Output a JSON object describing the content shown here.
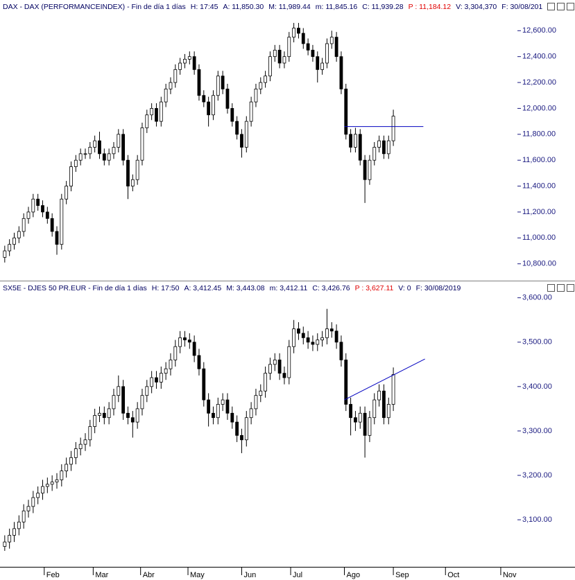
{
  "chart_data": [
    {
      "type": "candlestick",
      "header": [
        "DAX - DAX (PERFORMANCEINDEX) - Fin de día 1 días",
        "H: 17:45",
        "A: 11,850.30",
        "M: 11,989.44",
        "m: 11,845.16",
        "C: 11,939.28",
        "P : 11,184.12",
        "V: 3,304,370",
        "F: 30/08/201"
      ],
      "header_colors": [
        "#000060",
        "#000060",
        "#000060",
        "#000060",
        "#000060",
        "#000060",
        "#e00000",
        "#000060",
        "#000060"
      ],
      "up_color": "#ffffff",
      "down_color": "#000000",
      "outline_color": "#000000",
      "tick_color": "#1a1a80",
      "xlim": [
        0,
        364
      ],
      "ylim": [
        10670,
        12730
      ],
      "yticks": [
        {
          "value": 10800,
          "label": "10,800.00"
        },
        {
          "value": 11000,
          "label": "11,000.00"
        },
        {
          "value": 11200,
          "label": "11,200.00"
        },
        {
          "value": 11400,
          "label": "11,400.00"
        },
        {
          "value": 11600,
          "label": "11,600.00"
        },
        {
          "value": 11800,
          "label": "11,800.00"
        },
        {
          "value": 12000,
          "label": "12,000.00"
        },
        {
          "value": 12200,
          "label": "12,200.00"
        },
        {
          "value": 12400,
          "label": "12,400.00"
        },
        {
          "value": 12600,
          "label": "12,600.00"
        }
      ],
      "x": [
        3,
        6,
        9,
        12,
        15,
        18,
        21,
        24,
        27,
        30,
        33,
        36,
        39,
        42,
        45,
        48,
        51,
        54,
        57,
        60,
        63,
        66,
        69,
        72,
        75,
        78,
        81,
        84,
        87,
        90,
        93,
        96,
        99,
        102,
        105,
        108,
        111,
        114,
        117,
        120,
        123,
        126,
        129,
        132,
        135,
        138,
        141,
        144,
        147,
        150,
        153,
        156,
        159,
        162,
        165,
        168,
        171,
        174,
        177,
        180,
        183,
        186,
        189,
        192,
        195,
        198,
        201,
        204,
        207,
        210,
        213,
        216,
        219,
        222,
        225,
        228,
        231,
        234,
        237,
        240,
        243,
        246,
        249
      ],
      "open": [
        10850,
        10900,
        10950,
        11000,
        11050,
        11150,
        11200,
        11300,
        11250,
        11200,
        11150,
        11050,
        10950,
        11300,
        11400,
        11550,
        11600,
        11650,
        11650,
        11700,
        11750,
        11650,
        11600,
        11650,
        11700,
        11800,
        11600,
        11400,
        11450,
        11600,
        11850,
        11950,
        12000,
        11900,
        12050,
        12150,
        12200,
        12300,
        12350,
        12380,
        12400,
        12300,
        12100,
        12050,
        11950,
        12100,
        12250,
        12150,
        12000,
        11900,
        11800,
        11700,
        11900,
        12050,
        12150,
        12200,
        12250,
        12400,
        12450,
        12350,
        12400,
        12550,
        12620,
        12580,
        12500,
        12450,
        12400,
        12300,
        12350,
        12500,
        12550,
        12400,
        12150,
        11800,
        11700,
        11800,
        11600,
        11450,
        11600,
        11700,
        11750,
        11650,
        11750
      ],
      "high": [
        10940,
        10990,
        11040,
        11090,
        11190,
        11240,
        11340,
        11340,
        11290,
        11240,
        11190,
        11090,
        11340,
        11440,
        11590,
        11640,
        11690,
        11690,
        11740,
        11790,
        11820,
        11690,
        11690,
        11740,
        11840,
        11840,
        11640,
        11490,
        11640,
        11890,
        11990,
        12040,
        12040,
        12090,
        12190,
        12240,
        12340,
        12390,
        12420,
        12440,
        12440,
        12340,
        12140,
        12090,
        12140,
        12290,
        12290,
        12190,
        12040,
        11940,
        11840,
        11940,
        12090,
        12190,
        12240,
        12290,
        12440,
        12490,
        12490,
        12440,
        12590,
        12660,
        12660,
        12620,
        12540,
        12490,
        12440,
        12390,
        12540,
        12600,
        12590,
        12440,
        12190,
        11840,
        11850,
        11840,
        11640,
        11640,
        11740,
        11790,
        11790,
        11790,
        11990
      ],
      "low": [
        10810,
        10860,
        10910,
        10960,
        11010,
        11110,
        11160,
        11210,
        11160,
        11110,
        11010,
        10870,
        10910,
        11260,
        11360,
        11510,
        11560,
        11610,
        11610,
        11660,
        11610,
        11560,
        11560,
        11610,
        11660,
        11560,
        11300,
        11360,
        11410,
        11560,
        11810,
        11910,
        11860,
        11860,
        12010,
        12110,
        12160,
        12260,
        12310,
        12340,
        12260,
        12060,
        12010,
        11860,
        11910,
        12060,
        12110,
        11960,
        11860,
        11760,
        11620,
        11660,
        11860,
        12010,
        12110,
        12160,
        12210,
        12360,
        12310,
        12310,
        12360,
        12510,
        12540,
        12460,
        12410,
        12360,
        12200,
        12260,
        12310,
        12460,
        12360,
        12110,
        11760,
        11660,
        11660,
        11560,
        11270,
        11410,
        11560,
        11660,
        11610,
        11610,
        11710
      ],
      "close": [
        10900,
        10950,
        11000,
        11050,
        11150,
        11200,
        11300,
        11250,
        11200,
        11150,
        11050,
        10950,
        11300,
        11400,
        11550,
        11600,
        11650,
        11650,
        11700,
        11750,
        11650,
        11600,
        11650,
        11700,
        11800,
        11600,
        11400,
        11450,
        11600,
        11850,
        11950,
        12000,
        11900,
        12050,
        12150,
        12200,
        12300,
        12350,
        12380,
        12400,
        12300,
        12100,
        12050,
        11950,
        12100,
        12250,
        12150,
        12000,
        11900,
        11800,
        11700,
        11900,
        12050,
        12150,
        12200,
        12250,
        12400,
        12450,
        12350,
        12400,
        12550,
        12620,
        12580,
        12500,
        12450,
        12400,
        12300,
        12350,
        12500,
        12550,
        12400,
        12150,
        11800,
        11700,
        11800,
        11600,
        11450,
        11600,
        11700,
        11750,
        11650,
        11750,
        11940
      ],
      "lines": [
        {
          "color": "#0000c0",
          "x": [
            218,
            268
          ],
          "y": [
            11860,
            11860
          ]
        }
      ]
    },
    {
      "type": "candlestick",
      "header": [
        "SX5E - DJES 50 PR.EUR - Fin de día 1 días",
        "H: 17:50",
        "A: 3,412.45",
        "M: 3,443.08",
        "m: 3,412.11",
        "C: 3,426.76",
        "P : 3,627.11",
        "V: 0",
        "F: 30/08/2019"
      ],
      "header_colors": [
        "#000060",
        "#000060",
        "#000060",
        "#000060",
        "#000060",
        "#000060",
        "#e00000",
        "#000060",
        "#000060"
      ],
      "up_color": "#ffffff",
      "down_color": "#000000",
      "outline_color": "#000000",
      "tick_color": "#1a1a80",
      "xlim": [
        0,
        364
      ],
      "xticks": [
        {
          "value": 28,
          "label": "Feb"
        },
        {
          "value": 59,
          "label": "Mar"
        },
        {
          "value": 89,
          "label": "Abr"
        },
        {
          "value": 119,
          "label": "May"
        },
        {
          "value": 153,
          "label": "Jun"
        },
        {
          "value": 184,
          "label": "Jul"
        },
        {
          "value": 218,
          "label": "Ago"
        },
        {
          "value": 249,
          "label": "Sep"
        },
        {
          "value": 282,
          "label": "Oct"
        },
        {
          "value": 317,
          "label": "Nov"
        }
      ],
      "ylim": [
        2994,
        3612
      ],
      "yticks": [
        {
          "value": 3100,
          "label": "3,100.00"
        },
        {
          "value": 3200,
          "label": "3,200.00"
        },
        {
          "value": 3300,
          "label": "3,300.00"
        },
        {
          "value": 3400,
          "label": "3,400.00"
        },
        {
          "value": 3500,
          "label": "3,500.00"
        },
        {
          "value": 3600,
          "label": "3,600.00"
        }
      ],
      "x": [
        3,
        6,
        9,
        12,
        15,
        18,
        21,
        24,
        27,
        30,
        33,
        36,
        39,
        42,
        45,
        48,
        51,
        54,
        57,
        60,
        63,
        66,
        69,
        72,
        75,
        78,
        81,
        84,
        87,
        90,
        93,
        96,
        99,
        102,
        105,
        108,
        111,
        114,
        117,
        120,
        123,
        126,
        129,
        132,
        135,
        138,
        141,
        144,
        147,
        150,
        153,
        156,
        159,
        162,
        165,
        168,
        171,
        174,
        177,
        180,
        183,
        186,
        189,
        192,
        195,
        198,
        201,
        204,
        207,
        210,
        213,
        216,
        219,
        222,
        225,
        228,
        231,
        234,
        237,
        240,
        243,
        246,
        249
      ],
      "open": [
        3040,
        3050,
        3065,
        3080,
        3095,
        3120,
        3130,
        3150,
        3160,
        3175,
        3180,
        3185,
        3190,
        3210,
        3225,
        3240,
        3260,
        3270,
        3280,
        3310,
        3335,
        3340,
        3330,
        3350,
        3380,
        3400,
        3340,
        3330,
        3320,
        3350,
        3380,
        3400,
        3420,
        3410,
        3430,
        3440,
        3460,
        3490,
        3510,
        3505,
        3500,
        3470,
        3440,
        3370,
        3340,
        3330,
        3360,
        3370,
        3340,
        3320,
        3290,
        3280,
        3330,
        3350,
        3380,
        3390,
        3430,
        3450,
        3460,
        3430,
        3420,
        3490,
        3530,
        3520,
        3510,
        3500,
        3495,
        3505,
        3510,
        3530,
        3525,
        3500,
        3460,
        3360,
        3330,
        3320,
        3340,
        3290,
        3330,
        3370,
        3390,
        3330,
        3360
      ],
      "high": [
        3065,
        3080,
        3095,
        3110,
        3135,
        3145,
        3165,
        3175,
        3190,
        3195,
        3200,
        3205,
        3225,
        3240,
        3255,
        3275,
        3285,
        3295,
        3325,
        3350,
        3355,
        3355,
        3365,
        3395,
        3425,
        3415,
        3355,
        3345,
        3365,
        3395,
        3415,
        3435,
        3435,
        3445,
        3455,
        3475,
        3505,
        3525,
        3525,
        3520,
        3515,
        3485,
        3455,
        3385,
        3355,
        3375,
        3385,
        3385,
        3355,
        3335,
        3305,
        3345,
        3365,
        3395,
        3405,
        3445,
        3465,
        3475,
        3475,
        3445,
        3505,
        3550,
        3545,
        3535,
        3525,
        3515,
        3520,
        3525,
        3575,
        3545,
        3540,
        3515,
        3475,
        3375,
        3345,
        3355,
        3355,
        3345,
        3385,
        3405,
        3405,
        3375,
        3443
      ],
      "low": [
        3030,
        3035,
        3050,
        3065,
        3080,
        3105,
        3115,
        3135,
        3145,
        3160,
        3165,
        3170,
        3175,
        3195,
        3210,
        3225,
        3245,
        3255,
        3265,
        3295,
        3320,
        3315,
        3315,
        3335,
        3365,
        3325,
        3315,
        3285,
        3305,
        3335,
        3365,
        3385,
        3395,
        3395,
        3415,
        3425,
        3445,
        3475,
        3490,
        3485,
        3455,
        3425,
        3355,
        3310,
        3315,
        3315,
        3345,
        3325,
        3305,
        3275,
        3250,
        3265,
        3315,
        3335,
        3365,
        3375,
        3415,
        3435,
        3415,
        3405,
        3405,
        3475,
        3505,
        3495,
        3485,
        3480,
        3480,
        3490,
        3495,
        3510,
        3485,
        3445,
        3345,
        3290,
        3300,
        3305,
        3240,
        3275,
        3315,
        3355,
        3315,
        3315,
        3345
      ],
      "close": [
        3050,
        3065,
        3080,
        3095,
        3120,
        3130,
        3150,
        3160,
        3175,
        3180,
        3185,
        3190,
        3210,
        3225,
        3240,
        3260,
        3270,
        3280,
        3310,
        3335,
        3340,
        3330,
        3350,
        3380,
        3400,
        3340,
        3330,
        3320,
        3350,
        3380,
        3400,
        3420,
        3410,
        3430,
        3440,
        3460,
        3490,
        3510,
        3505,
        3500,
        3470,
        3440,
        3370,
        3340,
        3330,
        3360,
        3370,
        3340,
        3320,
        3290,
        3280,
        3330,
        3350,
        3380,
        3390,
        3430,
        3450,
        3460,
        3430,
        3420,
        3490,
        3530,
        3520,
        3510,
        3500,
        3495,
        3505,
        3510,
        3530,
        3525,
        3500,
        3460,
        3360,
        3330,
        3320,
        3340,
        3290,
        3330,
        3370,
        3390,
        3330,
        3360,
        3427
      ],
      "lines": [
        {
          "color": "#0000c0",
          "x": [
            218,
            269
          ],
          "y": [
            3370,
            3462
          ]
        }
      ]
    }
  ]
}
